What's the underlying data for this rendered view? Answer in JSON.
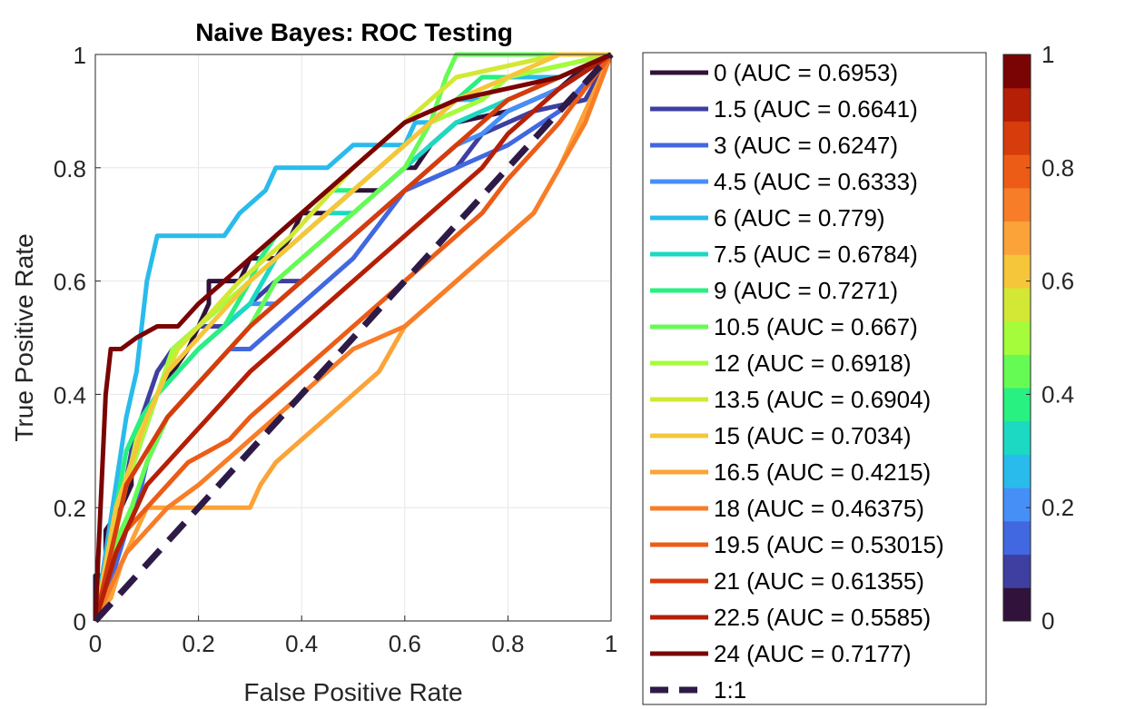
{
  "chart_data": {
    "type": "line",
    "title": "Naive Bayes: ROC Testing",
    "xlabel": "False Positive Rate",
    "ylabel": "True Positive Rate",
    "xlim": [
      0,
      1
    ],
    "ylim": [
      0,
      1
    ],
    "xticks": [
      "0",
      "0.2",
      "0.4",
      "0.6",
      "0.8",
      "1"
    ],
    "yticks": [
      "0",
      "0.2",
      "0.4",
      "0.6",
      "0.8",
      "1"
    ],
    "grid": true,
    "legend_position": "outside-right",
    "series": [
      {
        "name": "0 (AUC = 0.6953)",
        "color": "#30123b",
        "x": [
          0,
          0,
          0.02,
          0.02,
          0.05,
          0.07,
          0.07,
          0.1,
          0.12,
          0.15,
          0.18,
          0.2,
          0.22,
          0.22,
          0.25,
          0.28,
          0.3,
          0.35,
          0.38,
          0.4,
          0.45,
          0.5,
          0.55,
          0.6,
          0.62,
          0.65,
          0.7,
          0.8,
          0.9,
          0.95,
          1
        ],
        "y": [
          0,
          0.08,
          0.08,
          0.16,
          0.2,
          0.24,
          0.3,
          0.36,
          0.4,
          0.44,
          0.48,
          0.52,
          0.56,
          0.6,
          0.6,
          0.6,
          0.64,
          0.64,
          0.68,
          0.72,
          0.72,
          0.76,
          0.76,
          0.8,
          0.8,
          0.84,
          0.88,
          0.9,
          0.94,
          0.98,
          1
        ]
      },
      {
        "name": "1.5 (AUC = 0.6641)",
        "color": "#3e3fa0",
        "x": [
          0,
          0.02,
          0.03,
          0.05,
          0.07,
          0.09,
          0.12,
          0.15,
          0.2,
          0.25,
          0.3,
          0.35,
          0.4,
          0.45,
          0.5,
          0.55,
          0.6,
          0.65,
          0.7,
          0.75,
          0.85,
          0.95,
          1
        ],
        "y": [
          0,
          0.06,
          0.12,
          0.2,
          0.3,
          0.36,
          0.44,
          0.48,
          0.52,
          0.52,
          0.56,
          0.6,
          0.6,
          0.64,
          0.68,
          0.72,
          0.76,
          0.78,
          0.8,
          0.86,
          0.9,
          0.92,
          1
        ]
      },
      {
        "name": "3 (AUC = 0.6247)",
        "color": "#4168e0",
        "x": [
          0,
          0.02,
          0.04,
          0.06,
          0.08,
          0.1,
          0.14,
          0.18,
          0.22,
          0.26,
          0.3,
          0.35,
          0.4,
          0.45,
          0.5,
          0.55,
          0.6,
          0.7,
          0.8,
          0.9,
          1
        ],
        "y": [
          0,
          0.04,
          0.1,
          0.16,
          0.2,
          0.28,
          0.36,
          0.4,
          0.44,
          0.48,
          0.48,
          0.52,
          0.56,
          0.6,
          0.64,
          0.7,
          0.76,
          0.8,
          0.84,
          0.9,
          1
        ]
      },
      {
        "name": "4.5 (AUC = 0.6333)",
        "color": "#468ff7",
        "x": [
          0,
          0.02,
          0.04,
          0.06,
          0.09,
          0.12,
          0.16,
          0.2,
          0.25,
          0.3,
          0.35,
          0.4,
          0.45,
          0.5,
          0.55,
          0.6,
          0.65,
          0.7,
          0.75,
          0.8,
          0.9,
          1
        ],
        "y": [
          0,
          0.08,
          0.16,
          0.24,
          0.32,
          0.4,
          0.44,
          0.48,
          0.52,
          0.56,
          0.56,
          0.6,
          0.64,
          0.68,
          0.72,
          0.76,
          0.8,
          0.84,
          0.86,
          0.9,
          0.94,
          1
        ]
      },
      {
        "name": "6 (AUC = 0.779)",
        "color": "#29bbec",
        "x": [
          0,
          0.02,
          0.04,
          0.06,
          0.08,
          0.09,
          0.1,
          0.12,
          0.15,
          0.2,
          0.25,
          0.28,
          0.33,
          0.35,
          0.4,
          0.45,
          0.5,
          0.55,
          0.6,
          0.62,
          0.65,
          0.7,
          0.75,
          0.8,
          0.9,
          1
        ],
        "y": [
          0,
          0.12,
          0.24,
          0.36,
          0.44,
          0.52,
          0.6,
          0.68,
          0.68,
          0.68,
          0.68,
          0.72,
          0.76,
          0.8,
          0.8,
          0.8,
          0.84,
          0.84,
          0.84,
          0.88,
          0.88,
          0.92,
          0.92,
          0.96,
          0.96,
          1
        ]
      },
      {
        "name": "7.5 (AUC = 0.6784)",
        "color": "#1bd9c2",
        "x": [
          0,
          0.02,
          0.04,
          0.06,
          0.08,
          0.12,
          0.16,
          0.2,
          0.25,
          0.3,
          0.35,
          0.4,
          0.45,
          0.5,
          0.55,
          0.6,
          0.65,
          0.7,
          0.8,
          0.9,
          1
        ],
        "y": [
          0,
          0.08,
          0.16,
          0.24,
          0.32,
          0.4,
          0.44,
          0.48,
          0.52,
          0.56,
          0.64,
          0.68,
          0.72,
          0.72,
          0.76,
          0.8,
          0.84,
          0.88,
          0.92,
          0.96,
          1
        ]
      },
      {
        "name": "9 (AUC = 0.7271)",
        "color": "#28f081",
        "x": [
          0,
          0.02,
          0.04,
          0.06,
          0.09,
          0.12,
          0.16,
          0.2,
          0.25,
          0.3,
          0.32,
          0.35,
          0.4,
          0.45,
          0.5,
          0.55,
          0.6,
          0.65,
          0.7,
          0.75,
          0.8,
          0.9,
          1
        ],
        "y": [
          0,
          0.1,
          0.2,
          0.3,
          0.36,
          0.4,
          0.44,
          0.48,
          0.52,
          0.6,
          0.64,
          0.68,
          0.72,
          0.76,
          0.76,
          0.8,
          0.84,
          0.88,
          0.92,
          0.96,
          0.96,
          0.98,
          1
        ]
      },
      {
        "name": "10.5 (AUC = 0.667)",
        "color": "#66fb54",
        "x": [
          0,
          0.02,
          0.04,
          0.07,
          0.1,
          0.14,
          0.18,
          0.22,
          0.26,
          0.3,
          0.35,
          0.4,
          0.45,
          0.5,
          0.55,
          0.6,
          0.65,
          0.68,
          0.7,
          0.8,
          0.9,
          1
        ],
        "y": [
          0,
          0.06,
          0.14,
          0.2,
          0.28,
          0.36,
          0.4,
          0.44,
          0.48,
          0.52,
          0.6,
          0.64,
          0.68,
          0.72,
          0.76,
          0.8,
          0.88,
          0.96,
          1,
          1,
          1,
          1
        ]
      },
      {
        "name": "12 (AUC = 0.6918)",
        "color": "#a4fc3b",
        "x": [
          0,
          0.02,
          0.04,
          0.06,
          0.09,
          0.12,
          0.15,
          0.2,
          0.25,
          0.3,
          0.35,
          0.4,
          0.45,
          0.5,
          0.55,
          0.6,
          0.65,
          0.7,
          0.75,
          0.8,
          0.9,
          1
        ],
        "y": [
          0,
          0.08,
          0.16,
          0.24,
          0.32,
          0.4,
          0.48,
          0.52,
          0.56,
          0.6,
          0.64,
          0.68,
          0.72,
          0.76,
          0.8,
          0.84,
          0.88,
          0.9,
          0.92,
          0.96,
          0.98,
          1
        ]
      },
      {
        "name": "13.5 (AUC = 0.6904)",
        "color": "#d2e835",
        "x": [
          0,
          0.02,
          0.04,
          0.06,
          0.08,
          0.12,
          0.16,
          0.2,
          0.24,
          0.28,
          0.33,
          0.38,
          0.42,
          0.46,
          0.5,
          0.55,
          0.6,
          0.65,
          0.7,
          0.8,
          0.9,
          1
        ],
        "y": [
          0,
          0.08,
          0.16,
          0.24,
          0.32,
          0.4,
          0.48,
          0.52,
          0.56,
          0.6,
          0.64,
          0.68,
          0.72,
          0.76,
          0.8,
          0.84,
          0.88,
          0.92,
          0.96,
          0.98,
          1,
          1
        ]
      },
      {
        "name": "15 (AUC = 0.7034)",
        "color": "#f5c63a",
        "x": [
          0,
          0.02,
          0.04,
          0.07,
          0.1,
          0.14,
          0.18,
          0.22,
          0.26,
          0.3,
          0.35,
          0.4,
          0.45,
          0.5,
          0.55,
          0.6,
          0.65,
          0.7,
          0.8,
          0.9,
          1
        ],
        "y": [
          0,
          0.1,
          0.2,
          0.28,
          0.36,
          0.44,
          0.48,
          0.52,
          0.56,
          0.6,
          0.64,
          0.68,
          0.72,
          0.76,
          0.8,
          0.84,
          0.88,
          0.92,
          0.96,
          1,
          1
        ]
      },
      {
        "name": "16.5 (AUC = 0.4215)",
        "color": "#fba338",
        "x": [
          0,
          0.01,
          0.03,
          0.05,
          0.1,
          0.15,
          0.2,
          0.25,
          0.3,
          0.32,
          0.35,
          0.4,
          0.45,
          0.5,
          0.55,
          0.6,
          0.65,
          0.7,
          0.75,
          0.8,
          0.85,
          0.9,
          1
        ],
        "y": [
          0,
          0.02,
          0.04,
          0.1,
          0.2,
          0.2,
          0.2,
          0.2,
          0.2,
          0.24,
          0.28,
          0.32,
          0.36,
          0.4,
          0.44,
          0.52,
          0.56,
          0.6,
          0.64,
          0.68,
          0.72,
          0.8,
          1
        ]
      },
      {
        "name": "18 (AUC = 0.46375)",
        "color": "#f87d28",
        "x": [
          0,
          0.02,
          0.04,
          0.06,
          0.1,
          0.14,
          0.2,
          0.25,
          0.3,
          0.35,
          0.4,
          0.45,
          0.5,
          0.55,
          0.6,
          0.65,
          0.7,
          0.75,
          0.8,
          0.85,
          0.9,
          0.95,
          1
        ],
        "y": [
          0,
          0.04,
          0.08,
          0.12,
          0.16,
          0.2,
          0.24,
          0.28,
          0.32,
          0.36,
          0.4,
          0.44,
          0.48,
          0.5,
          0.52,
          0.56,
          0.6,
          0.64,
          0.68,
          0.72,
          0.8,
          0.88,
          1
        ]
      },
      {
        "name": "19.5 (AUC = 0.53015)",
        "color": "#ec5c17",
        "x": [
          0,
          0.02,
          0.04,
          0.06,
          0.1,
          0.14,
          0.18,
          0.22,
          0.26,
          0.3,
          0.35,
          0.4,
          0.45,
          0.5,
          0.55,
          0.6,
          0.65,
          0.7,
          0.75,
          0.8,
          0.9,
          1
        ],
        "y": [
          0,
          0.06,
          0.12,
          0.16,
          0.2,
          0.24,
          0.28,
          0.3,
          0.32,
          0.36,
          0.4,
          0.44,
          0.48,
          0.52,
          0.56,
          0.6,
          0.64,
          0.68,
          0.72,
          0.78,
          0.88,
          1
        ]
      },
      {
        "name": "21 (AUC = 0.61355)",
        "color": "#d63c0c",
        "x": [
          0,
          0.02,
          0.04,
          0.06,
          0.1,
          0.14,
          0.18,
          0.22,
          0.26,
          0.3,
          0.35,
          0.4,
          0.45,
          0.5,
          0.55,
          0.6,
          0.65,
          0.7,
          0.75,
          0.8,
          0.9,
          1
        ],
        "y": [
          0,
          0.08,
          0.16,
          0.24,
          0.3,
          0.36,
          0.4,
          0.44,
          0.48,
          0.52,
          0.56,
          0.6,
          0.64,
          0.68,
          0.72,
          0.76,
          0.8,
          0.84,
          0.88,
          0.92,
          0.96,
          1
        ]
      },
      {
        "name": "22.5 (AUC = 0.5585)",
        "color": "#b51f06",
        "x": [
          0,
          0.02,
          0.04,
          0.07,
          0.1,
          0.14,
          0.18,
          0.22,
          0.26,
          0.3,
          0.35,
          0.4,
          0.45,
          0.5,
          0.55,
          0.6,
          0.65,
          0.7,
          0.75,
          0.8,
          0.9,
          1
        ],
        "y": [
          0,
          0.06,
          0.12,
          0.18,
          0.24,
          0.28,
          0.32,
          0.36,
          0.4,
          0.44,
          0.48,
          0.52,
          0.56,
          0.6,
          0.64,
          0.68,
          0.72,
          0.76,
          0.8,
          0.86,
          0.94,
          1
        ]
      },
      {
        "name": "24 (AUC = 0.7177)",
        "color": "#7a0403",
        "x": [
          0,
          0.01,
          0.02,
          0.03,
          0.05,
          0.08,
          0.12,
          0.16,
          0.2,
          0.25,
          0.3,
          0.35,
          0.4,
          0.45,
          0.5,
          0.55,
          0.6,
          0.65,
          0.7,
          0.8,
          0.9,
          1
        ],
        "y": [
          0,
          0.2,
          0.4,
          0.48,
          0.48,
          0.5,
          0.52,
          0.52,
          0.56,
          0.6,
          0.64,
          0.68,
          0.72,
          0.76,
          0.8,
          0.84,
          0.88,
          0.9,
          0.92,
          0.94,
          0.96,
          1
        ]
      },
      {
        "name": "1:1",
        "color": "#2e1a47",
        "dashed": true,
        "x": [
          0,
          1
        ],
        "y": [
          0,
          1
        ]
      }
    ],
    "colorbar": {
      "ticks": [
        "0",
        "0.2",
        "0.4",
        "0.6",
        "0.8",
        "1"
      ],
      "colors": [
        "#30123b",
        "#3e3fa0",
        "#4168e0",
        "#468ff7",
        "#29bbec",
        "#1bd9c2",
        "#28f081",
        "#66fb54",
        "#a4fc3b",
        "#d2e835",
        "#f5c63a",
        "#fba338",
        "#f87d28",
        "#ec5c17",
        "#d63c0c",
        "#b51f06",
        "#7a0403"
      ]
    }
  }
}
